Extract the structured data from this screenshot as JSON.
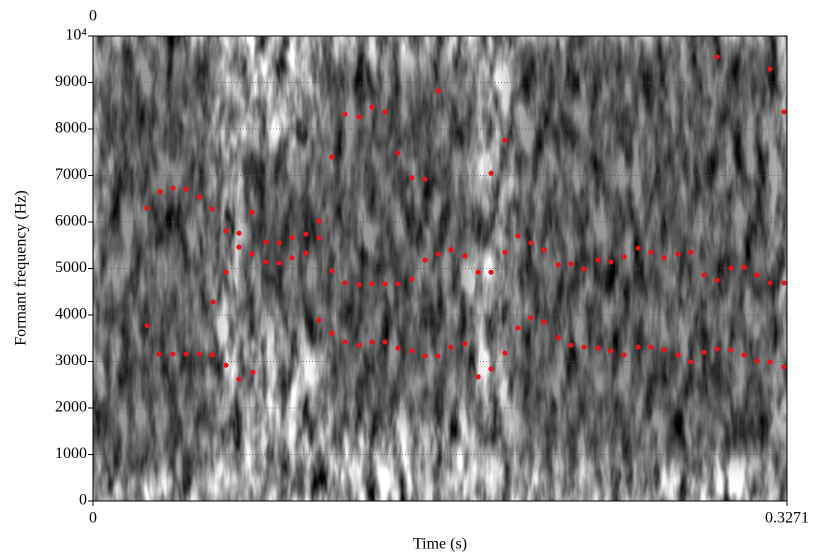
{
  "chart_data": {
    "type": "scatter",
    "top_label": "0",
    "x_label": "Time (s)",
    "y_label": "Formant frequency (Hz)",
    "xlim": [
      0,
      0.3271
    ],
    "xticks": [
      0,
      0.3271
    ],
    "ylim": [
      0,
      10000
    ],
    "yticks": [
      0,
      1000,
      2000,
      3000,
      4000,
      5000,
      6000,
      7000,
      8000,
      9000,
      {
        "value": 10000,
        "label": "10⁴"
      }
    ],
    "grid": true,
    "series": [
      {
        "color": "#e8141b",
        "x": [
          0.0255,
          0.0255,
          0.0311,
          0.0316,
          0.0377,
          0.0377,
          0.0438,
          0.0438,
          0.05,
          0.05,
          0.0561,
          0.0561,
          0.0566,
          0.0627,
          0.0627,
          0.0627,
          0.0688,
          0.0688,
          0.0688,
          0.0749,
          0.0749,
          0.0754,
          0.0815,
          0.0815,
          0.0877,
          0.0877,
          0.0938,
          0.0938,
          0.1004,
          0.1004,
          0.1065,
          0.1065,
          0.1065,
          0.1126,
          0.1126,
          0.1126,
          0.1188,
          0.1188,
          0.1188,
          0.1254,
          0.1254,
          0.1254,
          0.1315,
          0.1315,
          0.1315,
          0.1376,
          0.1376,
          0.1376,
          0.1437,
          0.1437,
          0.1437,
          0.1503,
          0.1503,
          0.1503,
          0.1565,
          0.1565,
          0.1565,
          0.1626,
          0.1626,
          0.1626,
          0.1687,
          0.1687,
          0.1753,
          0.1753,
          0.1815,
          0.1815,
          0.1876,
          0.1876,
          0.1876,
          0.1942,
          0.1942,
          0.1942,
          0.2003,
          0.2003,
          0.2064,
          0.2064,
          0.2126,
          0.2126,
          0.2192,
          0.2192,
          0.2253,
          0.2253,
          0.2314,
          0.2314,
          0.238,
          0.238,
          0.2441,
          0.2441,
          0.2503,
          0.2503,
          0.2569,
          0.2569,
          0.263,
          0.263,
          0.2691,
          0.2691,
          0.2757,
          0.2757,
          0.2818,
          0.2818,
          0.288,
          0.288,
          0.2941,
          0.2941,
          0.2941,
          0.3007,
          0.3007,
          0.3068,
          0.3068,
          0.3129,
          0.3129,
          0.3191,
          0.3191,
          0.3191,
          0.3257,
          0.3257,
          0.3257
        ],
        "values": [
          3770,
          6300,
          3160,
          6650,
          3160,
          6730,
          3160,
          6710,
          3160,
          6540,
          3140,
          6280,
          4280,
          2920,
          4920,
          5810,
          2620,
          5760,
          5460,
          6210,
          5310,
          2770,
          5570,
          5140,
          5120,
          5550,
          5660,
          5230,
          5740,
          5330,
          6020,
          5660,
          3890,
          7400,
          4950,
          3610,
          8320,
          4690,
          3420,
          8260,
          4650,
          3350,
          8470,
          4670,
          3420,
          8370,
          4670,
          3420,
          7480,
          4670,
          3290,
          6950,
          4770,
          3230,
          6920,
          5180,
          3120,
          8820,
          5310,
          3120,
          5400,
          3310,
          5270,
          3380,
          4920,
          2670,
          7050,
          4920,
          2840,
          7760,
          5350,
          3180,
          5700,
          3720,
          5550,
          3940,
          5400,
          3850,
          5080,
          3510,
          5100,
          3350,
          4990,
          3310,
          5180,
          3290,
          5140,
          3230,
          5250,
          3140,
          5440,
          3310,
          5350,
          3310,
          5230,
          3250,
          5310,
          3140,
          5350,
          2990,
          4860,
          3200,
          9550,
          4750,
          3270,
          5010,
          3250,
          5030,
          3140,
          4860,
          3010,
          9290,
          4690,
          2990,
          8370,
          4690,
          2880
        ]
      }
    ]
  }
}
